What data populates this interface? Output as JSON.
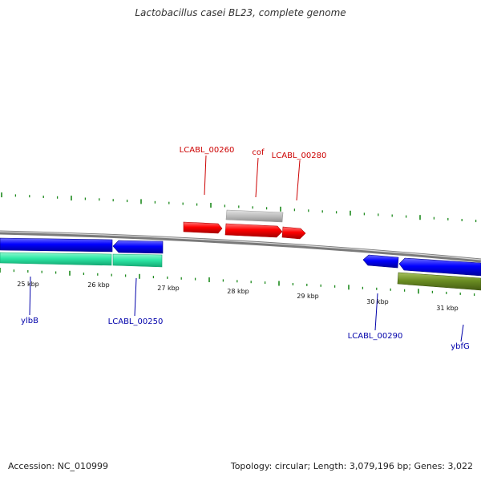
{
  "title": "Lactobacillus casei BL23, complete genome",
  "footer": {
    "accession": "Accession: NC_010999",
    "topology": "Topology: circular; Length: 3,079,196 bp; Genes: 3,022"
  },
  "colors": {
    "backbone": "#8a8a8a",
    "tick": "#1e8a1e",
    "top_label": "#cc0000",
    "bottom_label": "#0000aa",
    "red_gene": "#ff0000",
    "grey_gene": "#b8b8b8",
    "blue_gene": "#0000ff",
    "teal_gene": "#2ee8a6",
    "olive_gene": "#6b8e23"
  },
  "ruler": {
    "labels": [
      "25 kbp",
      "26 kbp",
      "27 kbp",
      "28 kbp",
      "29 kbp",
      "30 kbp",
      "31 kbp"
    ]
  },
  "gene_labels": {
    "top": [
      "LCABL_00260",
      "cof",
      "LCABL_00280"
    ],
    "bottom": [
      "ylbB",
      "LCABL_00250",
      "LCABL_00290",
      "ybfG"
    ]
  }
}
